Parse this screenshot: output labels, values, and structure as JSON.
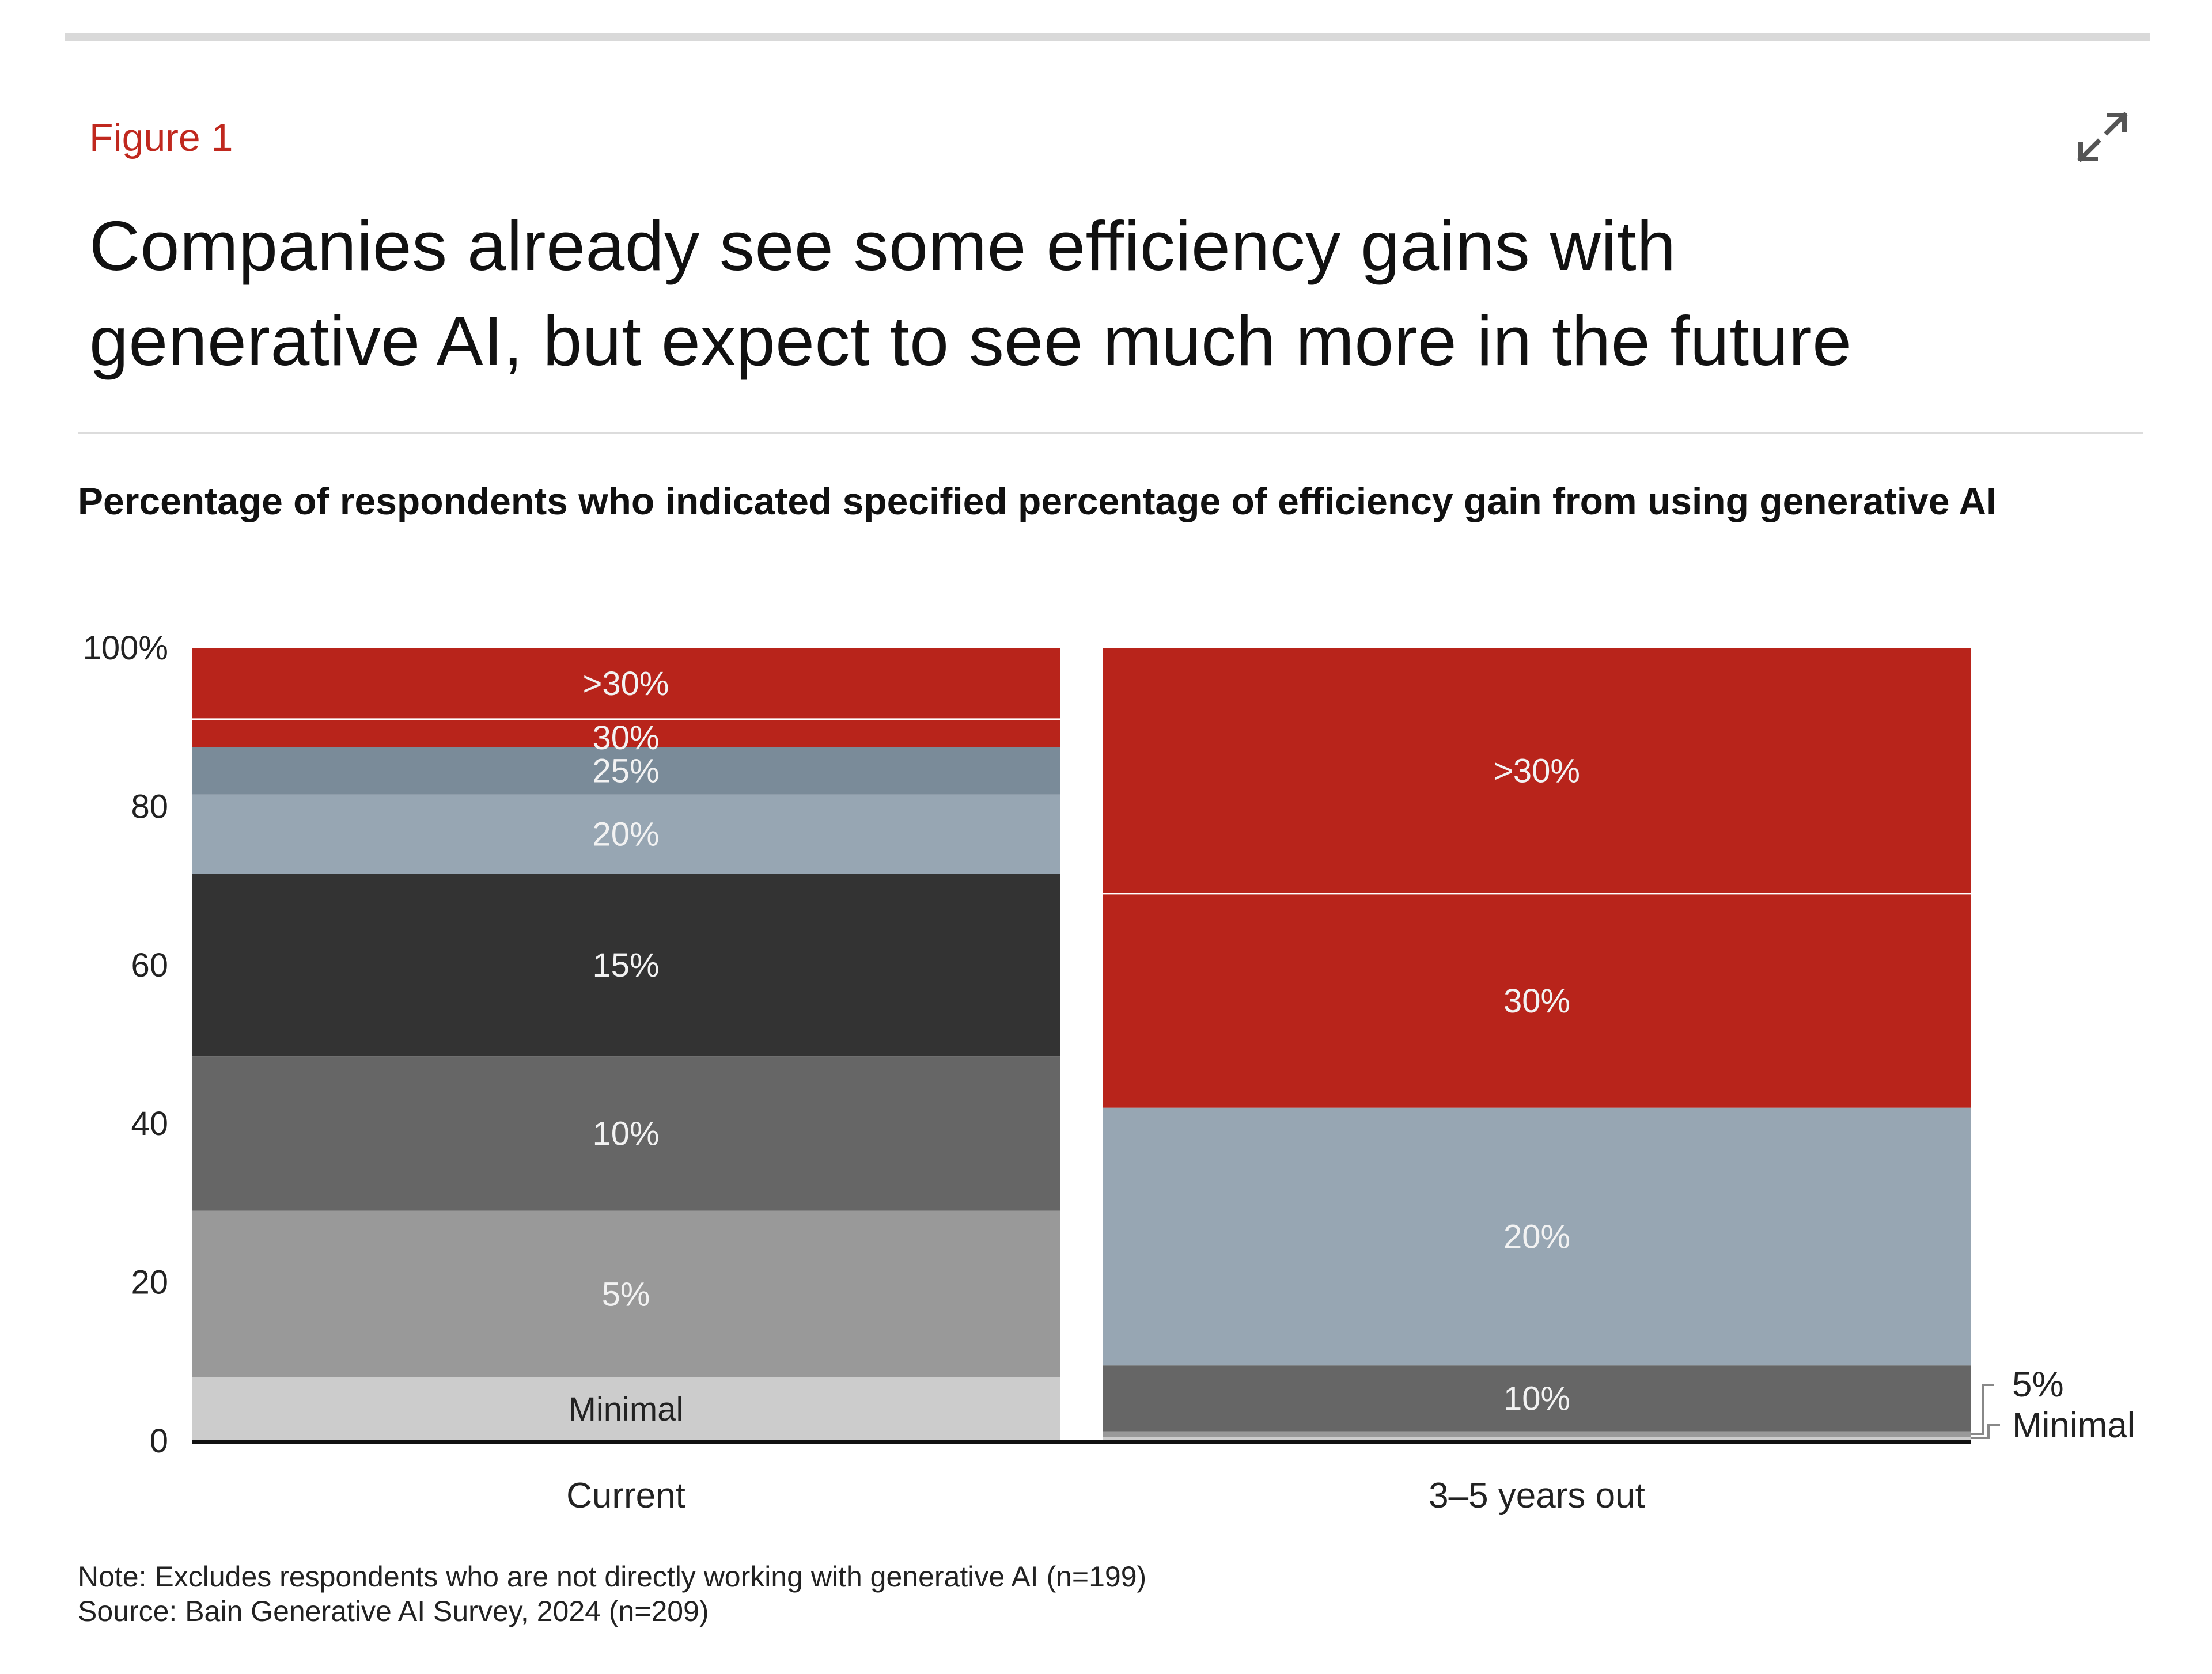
{
  "figure_label": "Figure 1",
  "title_line1": "Companies already see some efficiency gains with",
  "title_line2": "generative AI, but expect to see much more in the future",
  "subtitle": "Percentage of respondents who indicated specified percentage of efficiency gain from using generative AI",
  "note": "Note: Excludes respondents who are not directly working with generative AI (n=199)",
  "source": "Source: Bain Generative AI Survey, 2024 (n=209)",
  "icons": {
    "expand": "expand-icon"
  },
  "colors": {
    ">30%": "#b8241b",
    "30%": "#b8241b",
    "25%": "#7a8b99",
    "20%": "#97a6b3",
    "15%": "#333333",
    "10%": "#666666",
    "5%": "#999999",
    "Minimal": "#cccccc",
    "axis": "#111111",
    "accent": "#c0281e"
  },
  "chart_data": {
    "type": "bar",
    "stacked": true,
    "categories": [
      "Current",
      "3–5 years out"
    ],
    "ylim": [
      0,
      100
    ],
    "y_ticks": [
      0,
      20,
      40,
      60,
      80,
      100
    ],
    "y_tick_labels": [
      "0",
      "20",
      "40",
      "60",
      "80",
      "100%"
    ],
    "xlabel": "",
    "ylabel": "",
    "grid": false,
    "series": [
      {
        "name": "Minimal",
        "values": [
          8,
          0.5
        ]
      },
      {
        "name": "5%",
        "values": [
          21,
          0.7
        ]
      },
      {
        "name": "10%",
        "values": [
          19.5,
          8.3
        ]
      },
      {
        "name": "15%",
        "values": [
          23,
          0
        ]
      },
      {
        "name": "20%",
        "values": [
          10,
          32.5
        ]
      },
      {
        "name": "25%",
        "values": [
          6,
          0
        ]
      },
      {
        "name": "30%",
        "values": [
          3.5,
          27
        ]
      },
      {
        "name": ">30%",
        "values": [
          9,
          31
        ]
      }
    ],
    "annotations": [
      "5%",
      "Minimal"
    ]
  }
}
